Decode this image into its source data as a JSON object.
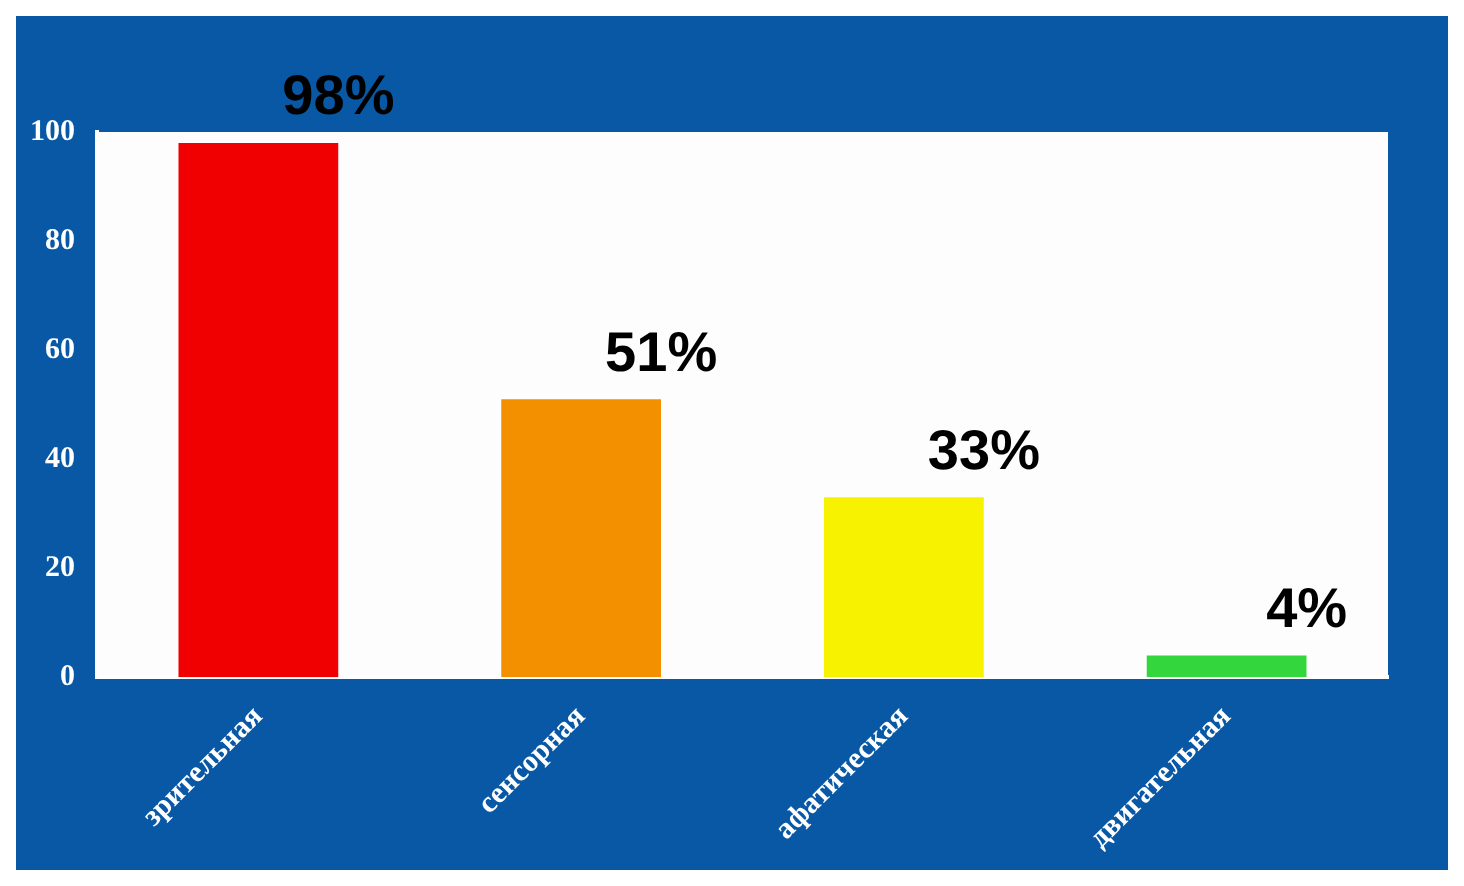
{
  "chart_data": {
    "type": "bar",
    "categories": [
      "зрительная",
      "сенсорная",
      "афатическая",
      "двигательная"
    ],
    "values": [
      98,
      51,
      33,
      4
    ],
    "colors": [
      "#f00000",
      "#f39000",
      "#f7f200",
      "#33d63c"
    ],
    "value_labels": [
      "98%",
      "51%",
      "33%",
      "4%"
    ],
    "ylim": [
      0,
      100
    ],
    "yticks": [
      0,
      20,
      40,
      60,
      80,
      100
    ],
    "grid": false,
    "legend": false
  }
}
